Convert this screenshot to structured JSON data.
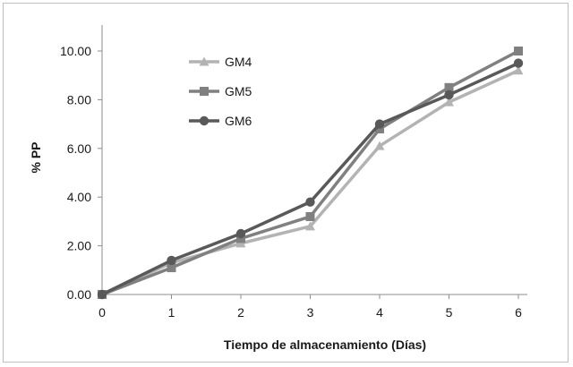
{
  "chart_data": {
    "type": "line",
    "title": "",
    "xlabel": "Tiempo de almacenamiento (Días)",
    "ylabel": "% PP",
    "x": [
      0,
      1,
      2,
      3,
      4,
      5,
      6
    ],
    "x_tick_labels": [
      "0",
      "1",
      "2",
      "3",
      "4",
      "5",
      "6"
    ],
    "ylim": [
      0,
      11
    ],
    "y_ticks": [
      0,
      2,
      4,
      6,
      8,
      10
    ],
    "y_tick_labels": [
      "0.00",
      "2.00",
      "4.00",
      "6.00",
      "8.00",
      "10.00"
    ],
    "grid": false,
    "legend_position": "top-left",
    "series": [
      {
        "name": "GM4",
        "marker": "triangle",
        "color": "#b3b3b3",
        "values": [
          0,
          1.3,
          2.1,
          2.8,
          6.1,
          7.9,
          9.2
        ]
      },
      {
        "name": "GM5",
        "marker": "square",
        "color": "#808080",
        "values": [
          0,
          1.1,
          2.3,
          3.2,
          6.8,
          8.5,
          10.0
        ]
      },
      {
        "name": "GM6",
        "marker": "circle",
        "color": "#595959",
        "values": [
          0,
          1.4,
          2.5,
          3.8,
          7.0,
          8.2,
          9.5
        ]
      }
    ]
  }
}
